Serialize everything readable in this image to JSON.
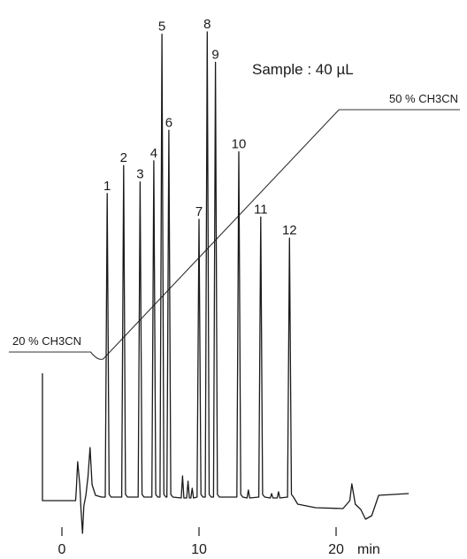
{
  "chart_data": {
    "type": "line",
    "sample_label": "Sample : 40 µL",
    "x_unit": "min",
    "x_ticks": [
      0,
      10,
      20
    ],
    "x_tick_labels": [
      "0",
      "10",
      "20"
    ],
    "xlim": [
      -4,
      25.5
    ],
    "gradient": {
      "start_label": "20 % CH3CN",
      "end_label": "50 % CH3CN",
      "start_percent": 20,
      "end_percent": 50,
      "ramp_start_min": 3,
      "ramp_end_min": 21.5
    },
    "peaks": [
      {
        "label": "1",
        "time": 3.3,
        "height": 0.655
      },
      {
        "label": "2",
        "time": 4.5,
        "height": 0.715
      },
      {
        "label": "3",
        "time": 5.7,
        "height": 0.68
      },
      {
        "label": "4",
        "time": 6.7,
        "height": 0.725
      },
      {
        "label": "5",
        "time": 7.3,
        "height": 0.995
      },
      {
        "label": "6",
        "time": 7.8,
        "height": 0.79
      },
      {
        "label": "7",
        "time": 10.0,
        "height": 0.6
      },
      {
        "label": "8",
        "time": 10.6,
        "height": 1.0
      },
      {
        "label": "9",
        "time": 11.2,
        "height": 0.935
      },
      {
        "label": "10",
        "time": 12.9,
        "height": 0.744
      },
      {
        "label": "11",
        "time": 14.5,
        "height": 0.605
      },
      {
        "label": "12",
        "time": 16.6,
        "height": 0.56
      }
    ]
  }
}
